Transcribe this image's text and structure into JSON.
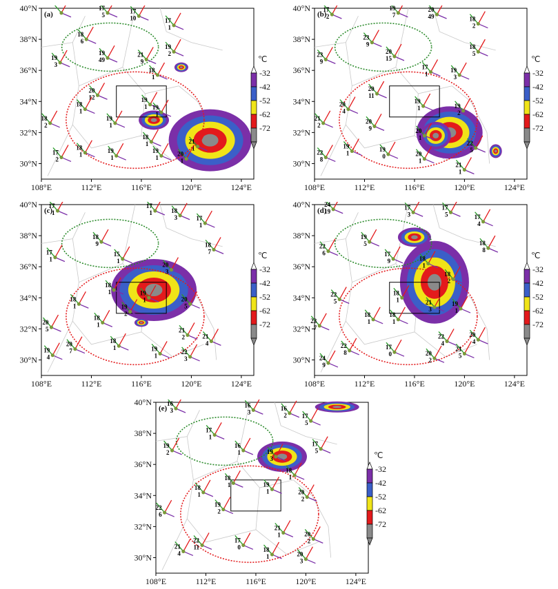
{
  "colorbar": {
    "unit": "℃",
    "ticks": [
      "-32",
      "-42",
      "-52",
      "-62",
      "-72"
    ],
    "colors": [
      "#ffffff",
      "#7b2fa8",
      "#3b5fc8",
      "#f0e418",
      "#e31a1c",
      "#8a8a8a"
    ]
  },
  "axes": {
    "xticks": [
      "108°E",
      "112°E",
      "116°E",
      "120°E",
      "124°E"
    ],
    "yticks": [
      "30°N",
      "32°N",
      "34°N",
      "36°N",
      "38°N",
      "40°N"
    ],
    "lon_range": [
      108,
      125
    ],
    "lat_range": [
      29,
      40
    ]
  },
  "panels": [
    {
      "label": "(a)",
      "stations": [
        {
          "lon": 109.6,
          "lat": 39.7,
          "t": "",
          "d": ""
        },
        {
          "lon": 113.3,
          "lat": 39.7,
          "t": "17",
          "d": "5"
        },
        {
          "lon": 115.8,
          "lat": 39.5,
          "t": "17",
          "d": "10"
        },
        {
          "lon": 118.6,
          "lat": 38.9,
          "t": "17",
          "d": "1"
        },
        {
          "lon": 111.6,
          "lat": 38.0,
          "t": "18",
          "d": "6"
        },
        {
          "lon": 118.6,
          "lat": 37.2,
          "t": "19",
          "d": "2"
        },
        {
          "lon": 109.5,
          "lat": 36.5,
          "t": "19",
          "d": "3"
        },
        {
          "lon": 113.3,
          "lat": 36.8,
          "t": "19",
          "d": "49"
        },
        {
          "lon": 116.4,
          "lat": 36.7,
          "t": "21",
          "d": "9"
        },
        {
          "lon": 117.3,
          "lat": 35.7,
          "t": "18",
          "d": "1"
        },
        {
          "lon": 112.5,
          "lat": 34.4,
          "t": "20",
          "d": "12"
        },
        {
          "lon": 111.5,
          "lat": 33.5,
          "t": "18",
          "d": "1"
        },
        {
          "lon": 116.7,
          "lat": 33.8,
          "t": "19",
          "d": "1"
        },
        {
          "lon": 117.6,
          "lat": 33.3,
          "t": "19",
          "d": "1"
        },
        {
          "lon": 113.9,
          "lat": 32.6,
          "t": "19",
          "d": "1"
        },
        {
          "lon": 108.7,
          "lat": 32.6,
          "t": "18",
          "d": "2"
        },
        {
          "lon": 116.8,
          "lat": 31.4,
          "t": "18",
          "d": "1"
        },
        {
          "lon": 120.5,
          "lat": 31.1,
          "t": "21",
          "d": "1"
        },
        {
          "lon": 119.6,
          "lat": 30.3,
          "t": "20",
          "d": "1"
        },
        {
          "lon": 109.6,
          "lat": 30.4,
          "t": "17",
          "d": "2"
        },
        {
          "lon": 111.5,
          "lat": 30.7,
          "t": "18",
          "d": "1"
        },
        {
          "lon": 114.0,
          "lat": 30.5,
          "t": "19",
          "d": "1"
        },
        {
          "lon": 117.6,
          "lat": 30.5,
          "t": "19",
          "d": "1"
        }
      ]
    },
    {
      "label": "(b)",
      "stations": [
        {
          "lon": 109.4,
          "lat": 39.6,
          "t": "17",
          "d": "2"
        },
        {
          "lon": 114.7,
          "lat": 39.7,
          "t": "19",
          "d": "7"
        },
        {
          "lon": 117.8,
          "lat": 39.6,
          "t": "20",
          "d": "49"
        },
        {
          "lon": 121.1,
          "lat": 39.0,
          "t": "18",
          "d": "2"
        },
        {
          "lon": 112.6,
          "lat": 37.8,
          "t": "23",
          "d": "9"
        },
        {
          "lon": 121.1,
          "lat": 37.2,
          "t": "18",
          "d": "5"
        },
        {
          "lon": 108.9,
          "lat": 36.7,
          "t": "23",
          "d": "9"
        },
        {
          "lon": 114.4,
          "lat": 36.9,
          "t": "20",
          "d": "15"
        },
        {
          "lon": 117.3,
          "lat": 35.9,
          "t": "17",
          "d": "1"
        },
        {
          "lon": 119.6,
          "lat": 35.7,
          "t": "19",
          "d": "3"
        },
        {
          "lon": 113.0,
          "lat": 34.5,
          "t": "20",
          "d": "11"
        },
        {
          "lon": 110.7,
          "lat": 33.5,
          "t": "20",
          "d": "4"
        },
        {
          "lon": 116.7,
          "lat": 33.7,
          "t": "19",
          "d": "1"
        },
        {
          "lon": 119.9,
          "lat": 33.4,
          "t": "19",
          "d": "2"
        },
        {
          "lon": 112.8,
          "lat": 32.4,
          "t": "20",
          "d": "9"
        },
        {
          "lon": 108.7,
          "lat": 32.6,
          "t": "21",
          "d": "2"
        },
        {
          "lon": 116.8,
          "lat": 31.8,
          "t": "20",
          "d": "1"
        },
        {
          "lon": 120.9,
          "lat": 31.0,
          "t": "22",
          "d": "5"
        },
        {
          "lon": 108.9,
          "lat": 30.4,
          "t": "22",
          "d": "8"
        },
        {
          "lon": 111.0,
          "lat": 30.8,
          "t": "19",
          "d": "1"
        },
        {
          "lon": 113.9,
          "lat": 30.6,
          "t": "19",
          "d": "0"
        },
        {
          "lon": 116.8,
          "lat": 30.3,
          "t": "20",
          "d": "1"
        },
        {
          "lon": 120.0,
          "lat": 29.6,
          "t": "21",
          "d": "1"
        }
      ]
    },
    {
      "label": "(c)",
      "stations": [
        {
          "lon": 109.3,
          "lat": 39.6,
          "t": "17",
          "d": "1"
        },
        {
          "lon": 117.1,
          "lat": 39.6,
          "t": "17",
          "d": "1"
        },
        {
          "lon": 119.1,
          "lat": 39.3,
          "t": "18",
          "d": "3"
        },
        {
          "lon": 121.1,
          "lat": 38.8,
          "t": "17",
          "d": "1"
        },
        {
          "lon": 112.8,
          "lat": 37.6,
          "t": "18",
          "d": "9"
        },
        {
          "lon": 109.1,
          "lat": 36.6,
          "t": "17",
          "d": "1"
        },
        {
          "lon": 114.5,
          "lat": 36.5,
          "t": "15",
          "d": "1"
        },
        {
          "lon": 118.4,
          "lat": 35.8,
          "t": "20",
          "d": "3"
        },
        {
          "lon": 121.8,
          "lat": 37.1,
          "t": "18",
          "d": "7"
        },
        {
          "lon": 113.8,
          "lat": 34.5,
          "t": "18",
          "d": "1"
        },
        {
          "lon": 116.6,
          "lat": 34.0,
          "t": "19",
          "d": "1"
        },
        {
          "lon": 111.0,
          "lat": 33.6,
          "t": "18",
          "d": "1"
        },
        {
          "lon": 119.9,
          "lat": 33.6,
          "t": "20",
          "d": "5"
        },
        {
          "lon": 115.1,
          "lat": 33.1,
          "t": "19",
          "d": "2"
        },
        {
          "lon": 112.9,
          "lat": 32.4,
          "t": "18",
          "d": "1"
        },
        {
          "lon": 108.8,
          "lat": 32.1,
          "t": "20",
          "d": "5"
        },
        {
          "lon": 119.7,
          "lat": 31.6,
          "t": "21",
          "d": "2"
        },
        {
          "lon": 121.6,
          "lat": 31.2,
          "t": "21",
          "d": "4"
        },
        {
          "lon": 110.7,
          "lat": 30.7,
          "t": "20",
          "d": "7"
        },
        {
          "lon": 108.9,
          "lat": 30.3,
          "t": "19",
          "d": "4"
        },
        {
          "lon": 114.2,
          "lat": 30.9,
          "t": "18",
          "d": "1"
        },
        {
          "lon": 117.5,
          "lat": 30.4,
          "t": "19",
          "d": "1"
        },
        {
          "lon": 119.9,
          "lat": 30.2,
          "t": "22",
          "d": "3"
        }
      ]
    },
    {
      "label": "(d)",
      "stations": [
        {
          "lon": 109.5,
          "lat": 39.7,
          "t": "24",
          "d": "19"
        },
        {
          "lon": 115.9,
          "lat": 39.5,
          "t": "17",
          "d": "3"
        },
        {
          "lon": 118.9,
          "lat": 39.5,
          "t": "17",
          "d": "5"
        },
        {
          "lon": 121.5,
          "lat": 38.9,
          "t": "17",
          "d": "4"
        },
        {
          "lon": 112.4,
          "lat": 37.6,
          "t": "19",
          "d": "5"
        },
        {
          "lon": 109.1,
          "lat": 37.0,
          "t": "22",
          "d": "6"
        },
        {
          "lon": 114.3,
          "lat": 36.5,
          "t": "17",
          "d": "9"
        },
        {
          "lon": 117.1,
          "lat": 36.2,
          "t": "18",
          "d": "1"
        },
        {
          "lon": 121.9,
          "lat": 37.2,
          "t": "18",
          "d": "8"
        },
        {
          "lon": 119.1,
          "lat": 35.2,
          "t": "18",
          "d": "2"
        },
        {
          "lon": 110.0,
          "lat": 33.9,
          "t": "22",
          "d": "5"
        },
        {
          "lon": 115.0,
          "lat": 34.0,
          "t": "18",
          "d": "1"
        },
        {
          "lon": 117.6,
          "lat": 33.4,
          "t": "21",
          "d": "3"
        },
        {
          "lon": 119.7,
          "lat": 33.3,
          "t": "19",
          "d": "1"
        },
        {
          "lon": 112.7,
          "lat": 32.6,
          "t": "18",
          "d": "1"
        },
        {
          "lon": 108.4,
          "lat": 32.2,
          "t": "23",
          "d": "7"
        },
        {
          "lon": 114.7,
          "lat": 32.6,
          "t": "18",
          "d": "1"
        },
        {
          "lon": 118.6,
          "lat": 31.2,
          "t": "22",
          "d": "4"
        },
        {
          "lon": 121.1,
          "lat": 31.3,
          "t": "20",
          "d": "4"
        },
        {
          "lon": 110.8,
          "lat": 30.6,
          "t": "22",
          "d": "8"
        },
        {
          "lon": 114.4,
          "lat": 30.5,
          "t": "17",
          "d": "0"
        },
        {
          "lon": 117.6,
          "lat": 30.1,
          "t": "20",
          "d": "2"
        },
        {
          "lon": 109.1,
          "lat": 29.8,
          "t": "24",
          "d": "9"
        },
        {
          "lon": 120.0,
          "lat": 30.4,
          "t": "21",
          "d": "5"
        }
      ]
    },
    {
      "label": "(e)",
      "stations": [
        {
          "lon": 109.6,
          "lat": 39.6,
          "t": "16",
          "d": "3"
        },
        {
          "lon": 115.8,
          "lat": 39.5,
          "t": "16",
          "d": "3"
        },
        {
          "lon": 118.7,
          "lat": 39.3,
          "t": "16",
          "d": "2"
        },
        {
          "lon": 120.4,
          "lat": 38.8,
          "t": "17",
          "d": "5"
        },
        {
          "lon": 112.7,
          "lat": 37.9,
          "t": "17",
          "d": "1"
        },
        {
          "lon": 109.3,
          "lat": 36.9,
          "t": "19",
          "d": "2"
        },
        {
          "lon": 115.0,
          "lat": 36.9,
          "t": "16",
          "d": "1"
        },
        {
          "lon": 117.6,
          "lat": 36.5,
          "t": "19",
          "d": "3"
        },
        {
          "lon": 121.2,
          "lat": 37.0,
          "t": "17",
          "d": "5"
        },
        {
          "lon": 119.1,
          "lat": 35.3,
          "t": "18",
          "d": "1"
        },
        {
          "lon": 111.8,
          "lat": 34.2,
          "t": "18",
          "d": "1"
        },
        {
          "lon": 114.2,
          "lat": 34.8,
          "t": "18",
          "d": "1"
        },
        {
          "lon": 117.3,
          "lat": 34.4,
          "t": "19",
          "d": "1"
        },
        {
          "lon": 120.1,
          "lat": 33.9,
          "t": "20",
          "d": "2"
        },
        {
          "lon": 108.7,
          "lat": 32.9,
          "t": "22",
          "d": "6"
        },
        {
          "lon": 113.4,
          "lat": 33.1,
          "t": "19",
          "d": "2"
        },
        {
          "lon": 120.6,
          "lat": 31.2,
          "t": "20",
          "d": "2"
        },
        {
          "lon": 118.2,
          "lat": 31.6,
          "t": "21",
          "d": "1"
        },
        {
          "lon": 110.2,
          "lat": 30.4,
          "t": "21",
          "d": "4"
        },
        {
          "lon": 111.7,
          "lat": 30.8,
          "t": "22",
          "d": "11"
        },
        {
          "lon": 115.0,
          "lat": 30.8,
          "t": "17",
          "d": "0"
        },
        {
          "lon": 117.3,
          "lat": 30.2,
          "t": "18",
          "d": "1"
        },
        {
          "lon": 120.0,
          "lat": 29.9,
          "t": "20",
          "d": "3"
        }
      ]
    }
  ]
}
